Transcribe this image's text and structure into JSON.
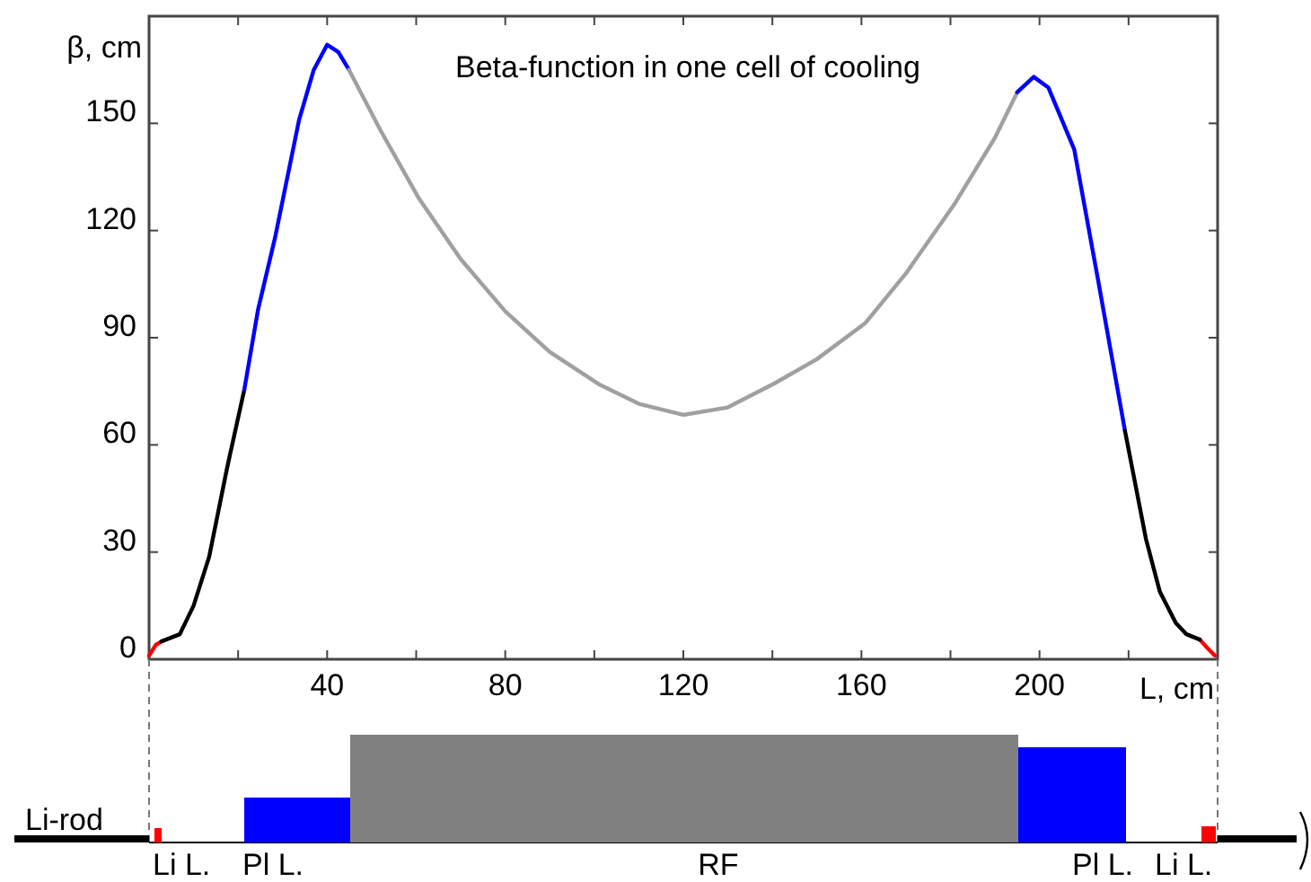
{
  "chart_data": {
    "type": "line",
    "title": "Beta-function in one cell of cooling",
    "xlabel": "L, cm",
    "ylabel": "β, cm",
    "xlim": [
      0,
      240
    ],
    "ylim": [
      0,
      180
    ],
    "xticks": [
      {
        "value": 20,
        "label": null
      },
      40,
      {
        "value": 60,
        "label": null
      },
      80,
      {
        "value": 100,
        "label": null
      },
      120,
      {
        "value": 140,
        "label": null
      },
      160,
      {
        "value": 180,
        "label": null
      },
      200,
      {
        "value": 220,
        "label": null
      }
    ],
    "yticks": [
      0,
      30,
      60,
      90,
      120,
      150
    ],
    "grid": false,
    "marker": "none",
    "line_style": "solid",
    "series": [
      {
        "color": "#ff0000",
        "x": [
          0,
          1.5,
          2.8,
          120,
          236,
          237.8,
          239.4
        ],
        "values": [
          1,
          4,
          5,
          null,
          5.5,
          3,
          1
        ]
      },
      {
        "color": "#000000",
        "x": [
          2.8,
          6.9,
          10,
          13.5,
          17.6,
          21.4
        ],
        "values": [
          5,
          7,
          15,
          28.7,
          54,
          75.5
        ]
      },
      {
        "color": "#0000ff",
        "x": [
          21.4,
          24.5,
          28.3,
          33.7,
          37,
          40,
          42.5,
          44.9
        ],
        "values": [
          75.5,
          98,
          118,
          151,
          165,
          172,
          170,
          165
        ]
      },
      {
        "color": "#a0a0a0",
        "x": [
          44.9,
          52,
          60.6,
          70,
          80,
          90,
          101,
          110,
          120,
          130,
          140.6,
          150,
          160.8,
          170,
          181,
          190,
          195
        ],
        "values": [
          165,
          148,
          129,
          112,
          97.4,
          86,
          77,
          71.5,
          68.4,
          70.5,
          77.3,
          84,
          94,
          108,
          127.6,
          146,
          158.7
        ]
      },
      {
        "color": "#0000ff",
        "x": [
          195,
          198.7,
          202,
          207.8,
          213.2,
          219.2
        ],
        "values": [
          158.7,
          163,
          160,
          142.7,
          105.8,
          63.9
        ]
      },
      {
        "color": "#000000",
        "x": [
          219.2,
          223.9,
          227,
          230.6,
          233,
          236
        ],
        "values": [
          63.9,
          33.7,
          19,
          10.2,
          7,
          5.5
        ]
      }
    ],
    "annotations": [
      "Li-rod",
      "Li L.",
      "Pl L.",
      "RF",
      "Pl L.",
      "Li L."
    ]
  }
}
